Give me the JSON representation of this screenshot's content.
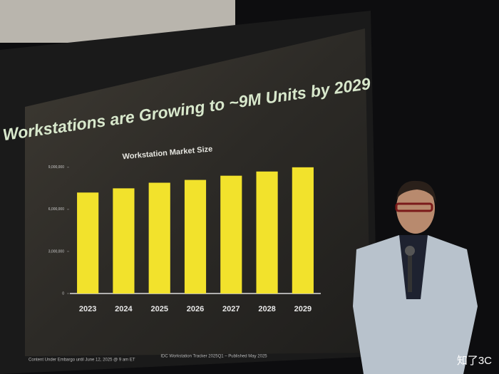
{
  "chart_data": {
    "type": "bar",
    "title": "Workstations are Growing to ~9M Units by 2029",
    "subtitle": "Workstation Market Size",
    "categories": [
      "2023",
      "2024",
      "2025",
      "2026",
      "2027",
      "2028",
      "2029"
    ],
    "values": [
      7200000,
      7500000,
      7900000,
      8100000,
      8400000,
      8700000,
      9000000
    ],
    "color": "#f2e22c",
    "ylim": [
      0,
      9500000
    ],
    "yticks": [
      0,
      {
        "value": 3000000,
        "label": "3,000,000"
      },
      {
        "value": 6000000,
        "label": "6,000,000"
      },
      {
        "value": 9000000,
        "label": "9,000,000"
      }
    ],
    "grid": false
  },
  "footer": {
    "left": "Content Under Embargo until June 12, 2025 @ 9 am ET",
    "center": "IDC Workstation Tracker 2025Q1 – Published May 2025"
  },
  "watermark": "知了3C"
}
